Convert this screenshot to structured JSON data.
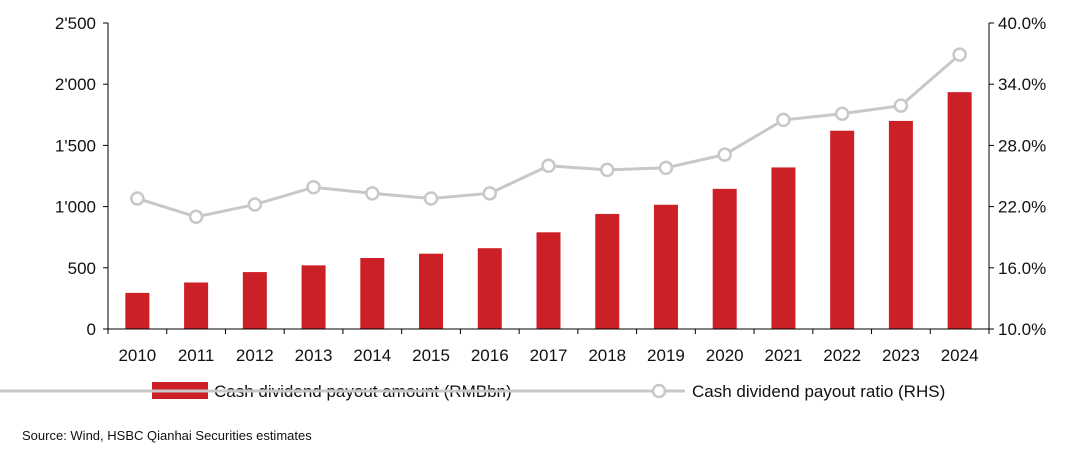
{
  "chart_data": {
    "type": "bar+line",
    "categories": [
      "2010",
      "2011",
      "2012",
      "2013",
      "2014",
      "2015",
      "2016",
      "2017",
      "2018",
      "2019",
      "2020",
      "2021",
      "2022",
      "2023",
      "2024"
    ],
    "series": [
      {
        "name": "Cash dividend payout amount (RMBbn)",
        "type": "bar",
        "axis": "left",
        "values": [
          295,
          380,
          465,
          520,
          580,
          615,
          660,
          790,
          940,
          1015,
          1145,
          1320,
          1620,
          1700,
          1935
        ]
      },
      {
        "name": "Cash dividend payout ratio (RHS)",
        "type": "line",
        "axis": "right",
        "values": [
          22.8,
          21.0,
          22.2,
          23.9,
          23.3,
          22.8,
          23.3,
          26.0,
          25.6,
          25.8,
          27.1,
          30.5,
          31.1,
          31.9,
          36.9
        ]
      }
    ],
    "left_axis": {
      "min": 0,
      "max": 2500,
      "ticks": [
        0,
        500,
        1000,
        1500,
        2000,
        2500
      ],
      "tick_labels": [
        "0",
        "500",
        "1'000",
        "1'500",
        "2'000",
        "2'500"
      ]
    },
    "right_axis": {
      "min": 10,
      "max": 40,
      "ticks": [
        10,
        16,
        22,
        28,
        34,
        40
      ],
      "tick_labels": [
        "10.0%",
        "16.0%",
        "22.0%",
        "28.0%",
        "34.0%",
        "40.0%"
      ]
    },
    "colors": {
      "bar": "#cc2027",
      "line": "#c8c8c8",
      "marker_fill": "#ffffff",
      "axis": "#000000"
    },
    "legend": {
      "position": "bottom",
      "bar_label": "Cash dividend payout amount (RMBbn)",
      "line_label": "Cash dividend payout ratio (RHS)"
    }
  },
  "source": "Source: Wind, HSBC Qianhai Securities estimates"
}
